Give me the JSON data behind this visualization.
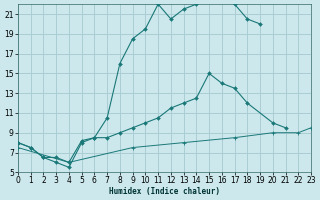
{
  "xlabel": "Humidex (Indice chaleur)",
  "bg_color": "#cce8ec",
  "grid_color": "#aacdd4",
  "line_color": "#1a7878",
  "xlim": [
    0,
    23
  ],
  "ylim": [
    5,
    22
  ],
  "yticks": [
    5,
    7,
    9,
    11,
    13,
    15,
    17,
    19,
    21
  ],
  "xticks": [
    0,
    1,
    2,
    3,
    4,
    5,
    6,
    7,
    8,
    9,
    10,
    11,
    12,
    13,
    14,
    15,
    16,
    17,
    18,
    19,
    20,
    21,
    22,
    23
  ],
  "line1_x": [
    0,
    1,
    2,
    3,
    4,
    5,
    6,
    7,
    8,
    9,
    10,
    11,
    12,
    13,
    14,
    15,
    16,
    17,
    18,
    19
  ],
  "line1_y": [
    8,
    7.5,
    6.5,
    6.0,
    5.5,
    8.0,
    8.5,
    10.5,
    16.0,
    18.5,
    19.5,
    22.0,
    20.5,
    21.5,
    22.0,
    22.5,
    22.5,
    22.0,
    20.5,
    20.0
  ],
  "line2_x": [
    0,
    1,
    2,
    3,
    4,
    5,
    6,
    7,
    8,
    9,
    10,
    11,
    12,
    13,
    14,
    15,
    16,
    17,
    18,
    20,
    21
  ],
  "line2_y": [
    8,
    7.5,
    6.5,
    6.5,
    6.0,
    8.2,
    8.5,
    8.5,
    9.0,
    9.5,
    10.0,
    10.5,
    11.5,
    12.0,
    12.5,
    15.0,
    14.0,
    13.5,
    12.0,
    10.0,
    9.5
  ],
  "line3_x": [
    0,
    4,
    9,
    13,
    17,
    20,
    22,
    23
  ],
  "line3_y": [
    7.5,
    6.0,
    7.5,
    8.0,
    8.5,
    9.0,
    9.0,
    9.5
  ]
}
